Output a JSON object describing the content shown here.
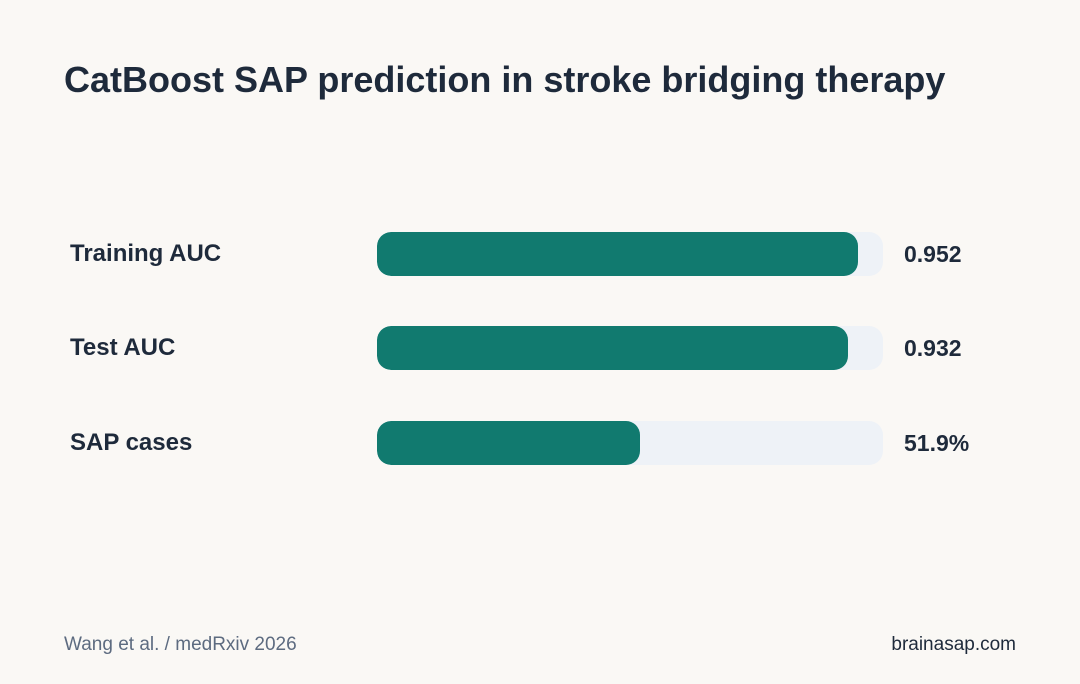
{
  "chart_data": {
    "type": "bar",
    "orientation": "horizontal",
    "title": "CatBoost SAP prediction in stroke bridging therapy",
    "categories": [
      "Training AUC",
      "Test AUC",
      "SAP cases"
    ],
    "value_labels": [
      "0.952",
      "0.932",
      "51.9%"
    ],
    "values": [
      0.952,
      0.932,
      0.519
    ],
    "xlim": [
      0,
      1
    ],
    "grid": false,
    "legend": "none",
    "colors": {
      "bar": "#117a6f",
      "track": "#eef2f7",
      "background": "#faf8f5",
      "text": "#1e2a3b"
    }
  },
  "footer": {
    "source": "Wang et al. / medRxiv 2026",
    "site": "brainasap.com"
  }
}
